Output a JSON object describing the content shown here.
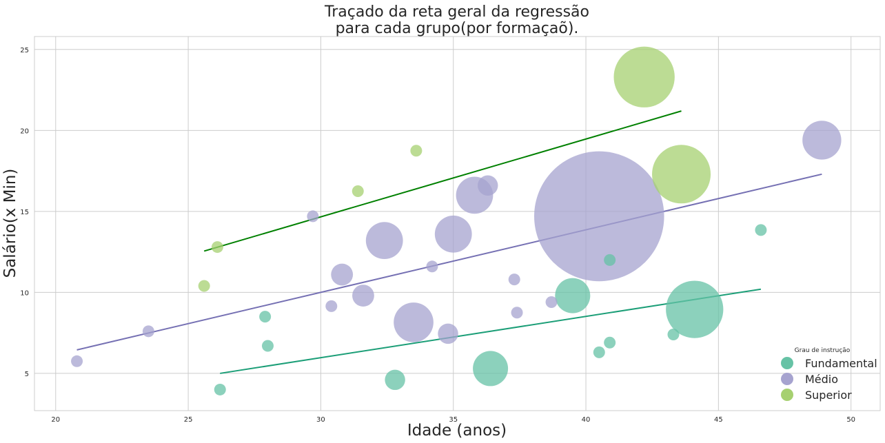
{
  "chart_data": {
    "type": "scatter",
    "title_lines": [
      "Traçado da reta geral da regressão",
      "para cada grupo(por formaçaõ)."
    ],
    "xlabel": "Idade (anos)",
    "ylabel": "Salário(x Min)",
    "xlim": [
      19.2,
      51.1
    ],
    "ylim": [
      2.7,
      25.8
    ],
    "xticks": [
      20,
      25,
      30,
      35,
      40,
      45,
      50
    ],
    "yticks": [
      5,
      10,
      15,
      20,
      25
    ],
    "grid": true,
    "legend": {
      "title": "Grau de instrução",
      "position": "bottom-right"
    },
    "series": [
      {
        "name": "Fundamental",
        "color": "#66c2a5",
        "line_color": "#1b9e77",
        "points": [
          {
            "x": 26.2,
            "y": 4.0,
            "s": 1
          },
          {
            "x": 27.9,
            "y": 8.5,
            "s": 1
          },
          {
            "x": 28.0,
            "y": 6.7,
            "s": 1
          },
          {
            "x": 32.8,
            "y": 4.6,
            "s": 3
          },
          {
            "x": 36.4,
            "y": 5.3,
            "s": 9
          },
          {
            "x": 39.5,
            "y": 9.8,
            "s": 9
          },
          {
            "x": 40.5,
            "y": 6.3,
            "s": 1
          },
          {
            "x": 40.9,
            "y": 6.9,
            "s": 1
          },
          {
            "x": 40.9,
            "y": 12.0,
            "s": 1
          },
          {
            "x": 43.3,
            "y": 7.4,
            "s": 1
          },
          {
            "x": 44.1,
            "y": 8.95,
            "s": 24
          },
          {
            "x": 46.6,
            "y": 13.85,
            "s": 1
          }
        ],
        "regression": [
          {
            "x": 26.2,
            "y": 5.0
          },
          {
            "x": 46.6,
            "y": 10.2
          }
        ]
      },
      {
        "name": "Médio",
        "color": "#a6a3cf",
        "line_color": "#7570b3",
        "points": [
          {
            "x": 20.8,
            "y": 5.75,
            "s": 1
          },
          {
            "x": 23.5,
            "y": 7.6,
            "s": 1
          },
          {
            "x": 29.7,
            "y": 14.7,
            "s": 1
          },
          {
            "x": 30.4,
            "y": 9.15,
            "s": 1
          },
          {
            "x": 30.8,
            "y": 11.1,
            "s": 3.5
          },
          {
            "x": 31.6,
            "y": 9.8,
            "s": 3.5
          },
          {
            "x": 32.4,
            "y": 13.2,
            "s": 10
          },
          {
            "x": 33.5,
            "y": 8.15,
            "s": 11.5
          },
          {
            "x": 34.2,
            "y": 11.6,
            "s": 1
          },
          {
            "x": 34.8,
            "y": 7.45,
            "s": 3
          },
          {
            "x": 35.0,
            "y": 13.6,
            "s": 10
          },
          {
            "x": 35.8,
            "y": 16.0,
            "s": 10
          },
          {
            "x": 36.3,
            "y": 16.6,
            "s": 3
          },
          {
            "x": 37.3,
            "y": 10.8,
            "s": 1
          },
          {
            "x": 37.4,
            "y": 8.75,
            "s": 1
          },
          {
            "x": 38.7,
            "y": 9.4,
            "s": 1
          },
          {
            "x": 40.5,
            "y": 14.7,
            "s": 123
          },
          {
            "x": 48.9,
            "y": 19.4,
            "s": 11
          }
        ],
        "regression": [
          {
            "x": 20.8,
            "y": 6.45
          },
          {
            "x": 48.9,
            "y": 17.3
          }
        ]
      },
      {
        "name": "Superior",
        "color": "#a6d070",
        "line_color": "#008000",
        "points": [
          {
            "x": 25.6,
            "y": 10.4,
            "s": 1
          },
          {
            "x": 26.1,
            "y": 12.8,
            "s": 1
          },
          {
            "x": 31.4,
            "y": 16.25,
            "s": 1
          },
          {
            "x": 33.6,
            "y": 18.75,
            "s": 1
          },
          {
            "x": 42.2,
            "y": 23.3,
            "s": 27
          },
          {
            "x": 43.6,
            "y": 17.3,
            "s": 25
          }
        ],
        "regression": [
          {
            "x": 25.6,
            "y": 12.55
          },
          {
            "x": 43.6,
            "y": 21.2
          }
        ]
      }
    ]
  }
}
